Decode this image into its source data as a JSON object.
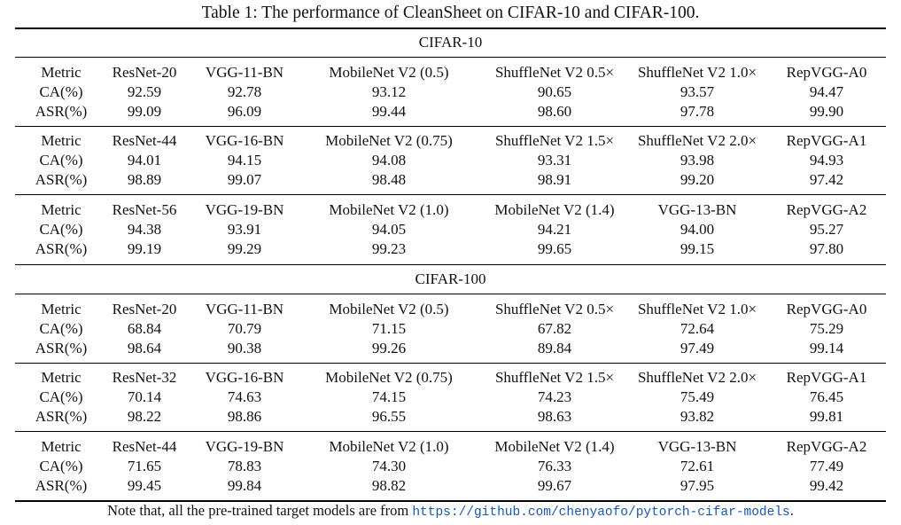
{
  "caption": "Table 1: The performance of CleanSheet on CIFAR-10 and CIFAR-100.",
  "sections": [
    {
      "title": "CIFAR-10",
      "groups": [
        {
          "header": [
            "Metric",
            "ResNet-20",
            "VGG-11-BN",
            "MobileNet V2 (0.5)",
            "ShuffleNet V2 0.5×",
            "ShuffleNet V2 1.0×",
            "RepVGG-A0"
          ],
          "rows": [
            [
              "CA(%)",
              "92.59",
              "92.78",
              "93.12",
              "90.65",
              "93.57",
              "94.47"
            ],
            [
              "ASR(%)",
              "99.09",
              "96.09",
              "99.44",
              "98.60",
              "97.78",
              "99.90"
            ]
          ]
        },
        {
          "header": [
            "Metric",
            "ResNet-44",
            "VGG-16-BN",
            "MobileNet V2 (0.75)",
            "ShuffleNet V2 1.5×",
            "ShuffleNet V2 2.0×",
            "RepVGG-A1"
          ],
          "rows": [
            [
              "CA(%)",
              "94.01",
              "94.15",
              "94.08",
              "93.31",
              "93.98",
              "94.93"
            ],
            [
              "ASR(%)",
              "98.89",
              "99.07",
              "98.48",
              "98.91",
              "99.20",
              "97.42"
            ]
          ]
        },
        {
          "header": [
            "Metric",
            "ResNet-56",
            "VGG-19-BN",
            "MobileNet V2 (1.0)",
            "MobileNet V2 (1.4)",
            "VGG-13-BN",
            "RepVGG-A2"
          ],
          "rows": [
            [
              "CA(%)",
              "94.38",
              "93.91",
              "94.05",
              "94.21",
              "94.00",
              "95.27"
            ],
            [
              "ASR(%)",
              "99.19",
              "99.29",
              "99.23",
              "99.65",
              "99.15",
              "97.80"
            ]
          ]
        }
      ]
    },
    {
      "title": "CIFAR-100",
      "groups": [
        {
          "header": [
            "Metric",
            "ResNet-20",
            "VGG-11-BN",
            "MobileNet V2 (0.5)",
            "ShuffleNet V2 0.5×",
            "ShuffleNet V2 1.0×",
            "RepVGG-A0"
          ],
          "rows": [
            [
              "CA(%)",
              "68.84",
              "70.79",
              "71.15",
              "67.82",
              "72.64",
              "75.29"
            ],
            [
              "ASR(%)",
              "98.64",
              "90.38",
              "99.26",
              "89.84",
              "97.49",
              "99.14"
            ]
          ]
        },
        {
          "header": [
            "Metric",
            "ResNet-32",
            "VGG-16-BN",
            "MobileNet V2 (0.75)",
            "ShuffleNet V2 1.5×",
            "ShuffleNet V2 2.0×",
            "RepVGG-A1"
          ],
          "rows": [
            [
              "CA(%)",
              "70.14",
              "74.63",
              "74.15",
              "74.23",
              "75.49",
              "76.45"
            ],
            [
              "ASR(%)",
              "98.22",
              "98.86",
              "96.55",
              "98.63",
              "93.82",
              "99.81"
            ]
          ]
        },
        {
          "header": [
            "Metric",
            "ResNet-44",
            "VGG-19-BN",
            "MobileNet V2 (1.0)",
            "MobileNet V2 (1.4)",
            "VGG-13-BN",
            "RepVGG-A2"
          ],
          "rows": [
            [
              "CA(%)",
              "71.65",
              "78.83",
              "74.30",
              "76.33",
              "72.61",
              "77.49"
            ],
            [
              "ASR(%)",
              "99.45",
              "99.84",
              "98.82",
              "99.67",
              "97.95",
              "99.42"
            ]
          ]
        }
      ]
    }
  ],
  "note": {
    "prefix": "Note that, all the pre-trained target models are from ",
    "url": "https://github.com/chenyaofo/pytorch-cifar-models",
    "suffix": "."
  }
}
